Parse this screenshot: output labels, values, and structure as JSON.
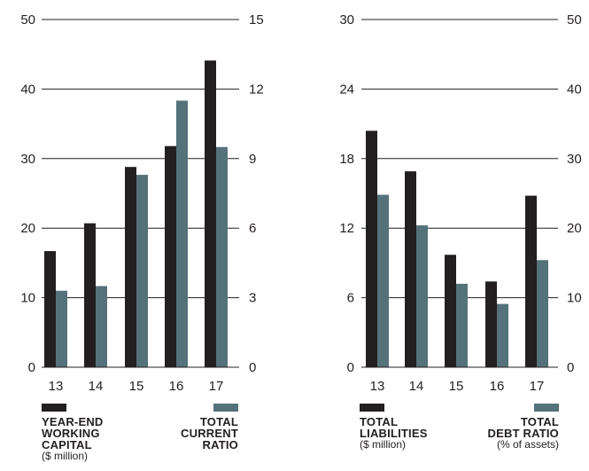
{
  "colors": {
    "dark": "#231f20",
    "teal": "#55717a",
    "grid": "#231f20"
  },
  "chart_data": [
    {
      "type": "bar",
      "categories": [
        "13",
        "14",
        "15",
        "16",
        "17"
      ],
      "series": [
        {
          "name": "YEAR-END WORKING CAPITAL ($ million)",
          "axis": "left",
          "color": "#231f20",
          "values": [
            16.7,
            20.7,
            28.8,
            31.8,
            44.1
          ]
        },
        {
          "name": "TOTAL CURRENT RATIO",
          "axis": "right",
          "color": "#55717a",
          "values": [
            3.3,
            3.5,
            8.3,
            11.5,
            9.5
          ]
        }
      ],
      "left_axis": {
        "ticks": [
          "0",
          "10",
          "20",
          "30",
          "40",
          "50"
        ],
        "ylim": [
          0,
          50
        ]
      },
      "right_axis": {
        "ticks": [
          "0",
          "3",
          "6",
          "9",
          "12",
          "15"
        ],
        "ylim": [
          0,
          15
        ]
      },
      "grid": true
    },
    {
      "type": "bar",
      "categories": [
        "13",
        "14",
        "15",
        "16",
        "17"
      ],
      "series": [
        {
          "name": "TOTAL LIABILITIES ($ million)",
          "axis": "left",
          "color": "#231f20",
          "values": [
            20.4,
            16.9,
            9.7,
            7.4,
            14.8
          ]
        },
        {
          "name": "TOTAL DEBT RATIO (% of assets)",
          "axis": "right",
          "color": "#55717a",
          "values": [
            24.8,
            20.4,
            12.0,
            9.1,
            15.4
          ]
        }
      ],
      "left_axis": {
        "ticks": [
          "0",
          "6",
          "12",
          "18",
          "24",
          "30"
        ],
        "ylim": [
          0,
          30
        ]
      },
      "right_axis": {
        "ticks": [
          "0",
          "10",
          "20",
          "30",
          "40",
          "50"
        ],
        "ylim": [
          0,
          50
        ]
      },
      "grid": true
    }
  ],
  "legends": {
    "chart1_left": {
      "title": "YEAR-END\nWORKING\nCAPITAL",
      "sub": "($ million)"
    },
    "chart1_right": {
      "title": "TOTAL\nCURRENT\nRATIO",
      "sub": ""
    },
    "chart2_left": {
      "title": "TOTAL\nLIABILITIES",
      "sub": "($ million)"
    },
    "chart2_right": {
      "title": "TOTAL\nDEBT RATIO",
      "sub": "(% of assets)"
    }
  }
}
